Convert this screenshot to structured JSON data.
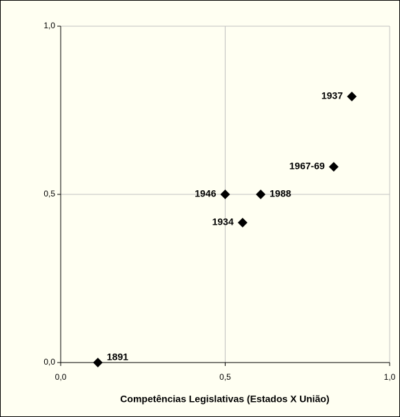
{
  "chart_data": {
    "type": "scatter",
    "x_label": "Competências Legislativas (Estados X União)",
    "x": [
      0.113,
      0.5,
      0.608,
      0.553,
      0.83,
      0.885
    ],
    "values": [
      0,
      0.5,
      0.5,
      0.416,
      0.582,
      0.791
    ],
    "labels": [
      "1891",
      "1946",
      "1988",
      "1934",
      "1967-69",
      "1937"
    ],
    "color": "#000000",
    "xlim": [
      0,
      1
    ],
    "ylim": [
      0,
      1
    ],
    "xticks": [
      {
        "value": 0,
        "label": "0,0"
      },
      {
        "value": 0.5,
        "label": "0,5"
      },
      {
        "value": 1,
        "label": "1,0"
      }
    ],
    "yticks": [
      {
        "value": 0,
        "label": "0,0"
      },
      {
        "value": 0.5,
        "label": "0,5"
      },
      {
        "value": 1,
        "label": "1,0"
      }
    ],
    "grid": true
  }
}
